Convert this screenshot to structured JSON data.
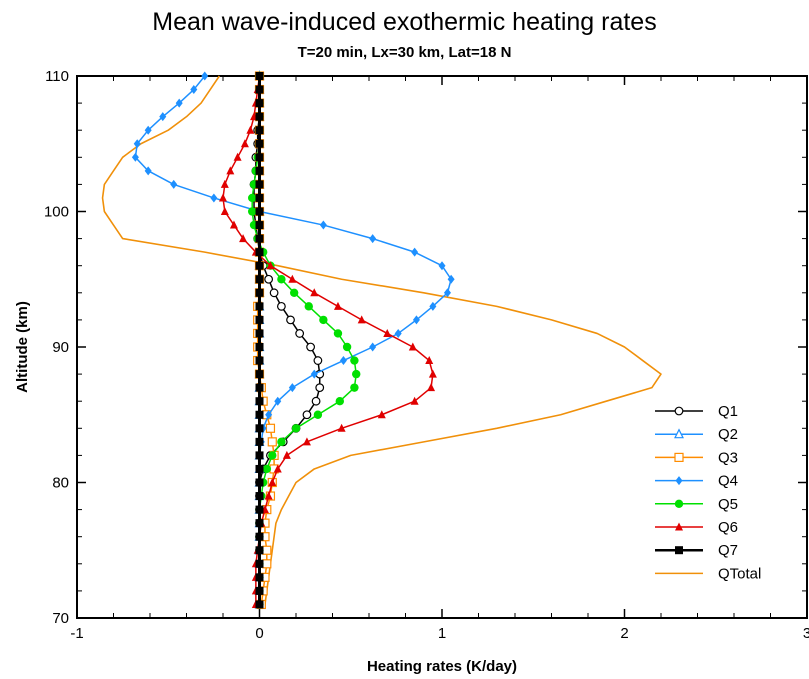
{
  "chart_data": {
    "type": "line",
    "title": "Mean wave-induced exothermic heating rates",
    "subtitle": "T=20 min, Lx=30 km, Lat=18 N",
    "xlabel": "Heating rates (K/day)",
    "ylabel": "Altitude (km)",
    "xlim": [
      -1,
      3
    ],
    "ylim": [
      70,
      110
    ],
    "x_ticks": [
      -1,
      0,
      1,
      2,
      3
    ],
    "y_ticks": [
      70,
      80,
      90,
      100,
      110
    ],
    "legend_position": "right",
    "grid": false,
    "altitudes": [
      71,
      72,
      73,
      74,
      75,
      76,
      77,
      78,
      79,
      80,
      81,
      82,
      83,
      84,
      85,
      86,
      87,
      88,
      89,
      90,
      91,
      92,
      93,
      94,
      95,
      96,
      97,
      98,
      99,
      100,
      101,
      102,
      103,
      104,
      105,
      106,
      107,
      108,
      109,
      110
    ],
    "series": [
      {
        "name": "Q1",
        "color": "#000000",
        "marker": "open-circle",
        "show_line": true,
        "x": [
          0,
          0,
          0,
          0,
          0,
          0,
          0,
          0,
          0,
          0,
          0.02,
          0.06,
          0.13,
          0.2,
          0.26,
          0.31,
          0.33,
          0.33,
          0.32,
          0.28,
          0.22,
          0.17,
          0.12,
          0.08,
          0.05,
          0.02,
          0.0,
          -0.01,
          -0.02,
          -0.03,
          -0.03,
          -0.03,
          -0.02,
          -0.02,
          -0.01,
          -0.01,
          0,
          0,
          0,
          0
        ]
      },
      {
        "name": "Q2",
        "color": "#1e90ff",
        "marker": "open-triangle",
        "show_line": true,
        "x": [
          0,
          0,
          0,
          0,
          0,
          0,
          0,
          0,
          0,
          0,
          0,
          0,
          0,
          0,
          0,
          0,
          0,
          0,
          0,
          0,
          0,
          0,
          0,
          0,
          0,
          0,
          0,
          0,
          0,
          0,
          0,
          0,
          0,
          0,
          0,
          0,
          0,
          0,
          0,
          0
        ]
      },
      {
        "name": "Q3",
        "color": "#ff8c00",
        "marker": "open-square",
        "show_line": true,
        "x": [
          0.01,
          0.02,
          0.03,
          0.04,
          0.04,
          0.03,
          0.03,
          0.04,
          0.06,
          0.07,
          0.08,
          0.08,
          0.07,
          0.06,
          0.04,
          0.02,
          0.01,
          0.0,
          -0.01,
          -0.01,
          -0.01,
          -0.01,
          -0.01,
          0,
          0,
          0,
          0,
          0,
          0,
          0,
          0,
          0,
          0,
          0,
          0,
          0,
          0,
          0,
          0,
          0
        ]
      },
      {
        "name": "Q4",
        "color": "#1e90ff",
        "marker": "filled-diamond",
        "show_line": true,
        "x": [
          0,
          0,
          0,
          0,
          0,
          0,
          0,
          0,
          0,
          0,
          0,
          0,
          0.01,
          0.02,
          0.05,
          0.1,
          0.18,
          0.3,
          0.46,
          0.62,
          0.76,
          0.86,
          0.95,
          1.03,
          1.05,
          1.0,
          0.85,
          0.62,
          0.35,
          0.0,
          -0.25,
          -0.47,
          -0.61,
          -0.68,
          -0.67,
          -0.61,
          -0.53,
          -0.44,
          -0.36,
          -0.3
        ]
      },
      {
        "name": "Q5",
        "color": "#00e000",
        "marker": "filled-circle",
        "show_line": true,
        "x": [
          0,
          0,
          0,
          0,
          0,
          0,
          0,
          0,
          0.01,
          0.02,
          0.04,
          0.07,
          0.12,
          0.2,
          0.32,
          0.44,
          0.52,
          0.53,
          0.52,
          0.48,
          0.43,
          0.35,
          0.27,
          0.19,
          0.12,
          0.06,
          0.02,
          -0.01,
          -0.03,
          -0.04,
          -0.04,
          -0.03,
          -0.02,
          -0.01,
          0,
          0,
          0,
          0,
          0,
          0
        ]
      },
      {
        "name": "Q6",
        "color": "#e00000",
        "marker": "filled-triangle",
        "show_line": true,
        "x": [
          -0.02,
          -0.02,
          -0.02,
          -0.02,
          -0.01,
          0,
          0.01,
          0.03,
          0.05,
          0.07,
          0.1,
          0.15,
          0.26,
          0.45,
          0.67,
          0.85,
          0.94,
          0.95,
          0.93,
          0.84,
          0.7,
          0.56,
          0.43,
          0.3,
          0.18,
          0.06,
          -0.02,
          -0.09,
          -0.14,
          -0.19,
          -0.2,
          -0.19,
          -0.16,
          -0.12,
          -0.08,
          -0.05,
          -0.03,
          -0.02,
          -0.01,
          0
        ]
      },
      {
        "name": "Q7",
        "color": "#000000",
        "marker": "filled-square",
        "show_line": true,
        "x": [
          0,
          0,
          0,
          0,
          0,
          0,
          0,
          0,
          0,
          0,
          0,
          0,
          0,
          0,
          0,
          0,
          0,
          0,
          0,
          0,
          0,
          0,
          0,
          0,
          0,
          0,
          0,
          0,
          0,
          0,
          0,
          0,
          0,
          0,
          0,
          0,
          0,
          0,
          0,
          0
        ]
      },
      {
        "name": "QTotal",
        "color": "#f0900a",
        "marker": "none",
        "show_line": true,
        "x": [
          0.03,
          0.04,
          0.05,
          0.06,
          0.07,
          0.08,
          0.09,
          0.12,
          0.16,
          0.2,
          0.3,
          0.5,
          0.9,
          1.3,
          1.65,
          1.9,
          2.15,
          2.2,
          2.1,
          2.0,
          1.85,
          1.6,
          1.3,
          0.9,
          0.45,
          0.1,
          -0.3,
          -0.75,
          -0.8,
          -0.85,
          -0.86,
          -0.85,
          -0.8,
          -0.75,
          -0.65,
          -0.5,
          -0.4,
          -0.32,
          -0.27,
          -0.22
        ]
      }
    ]
  }
}
